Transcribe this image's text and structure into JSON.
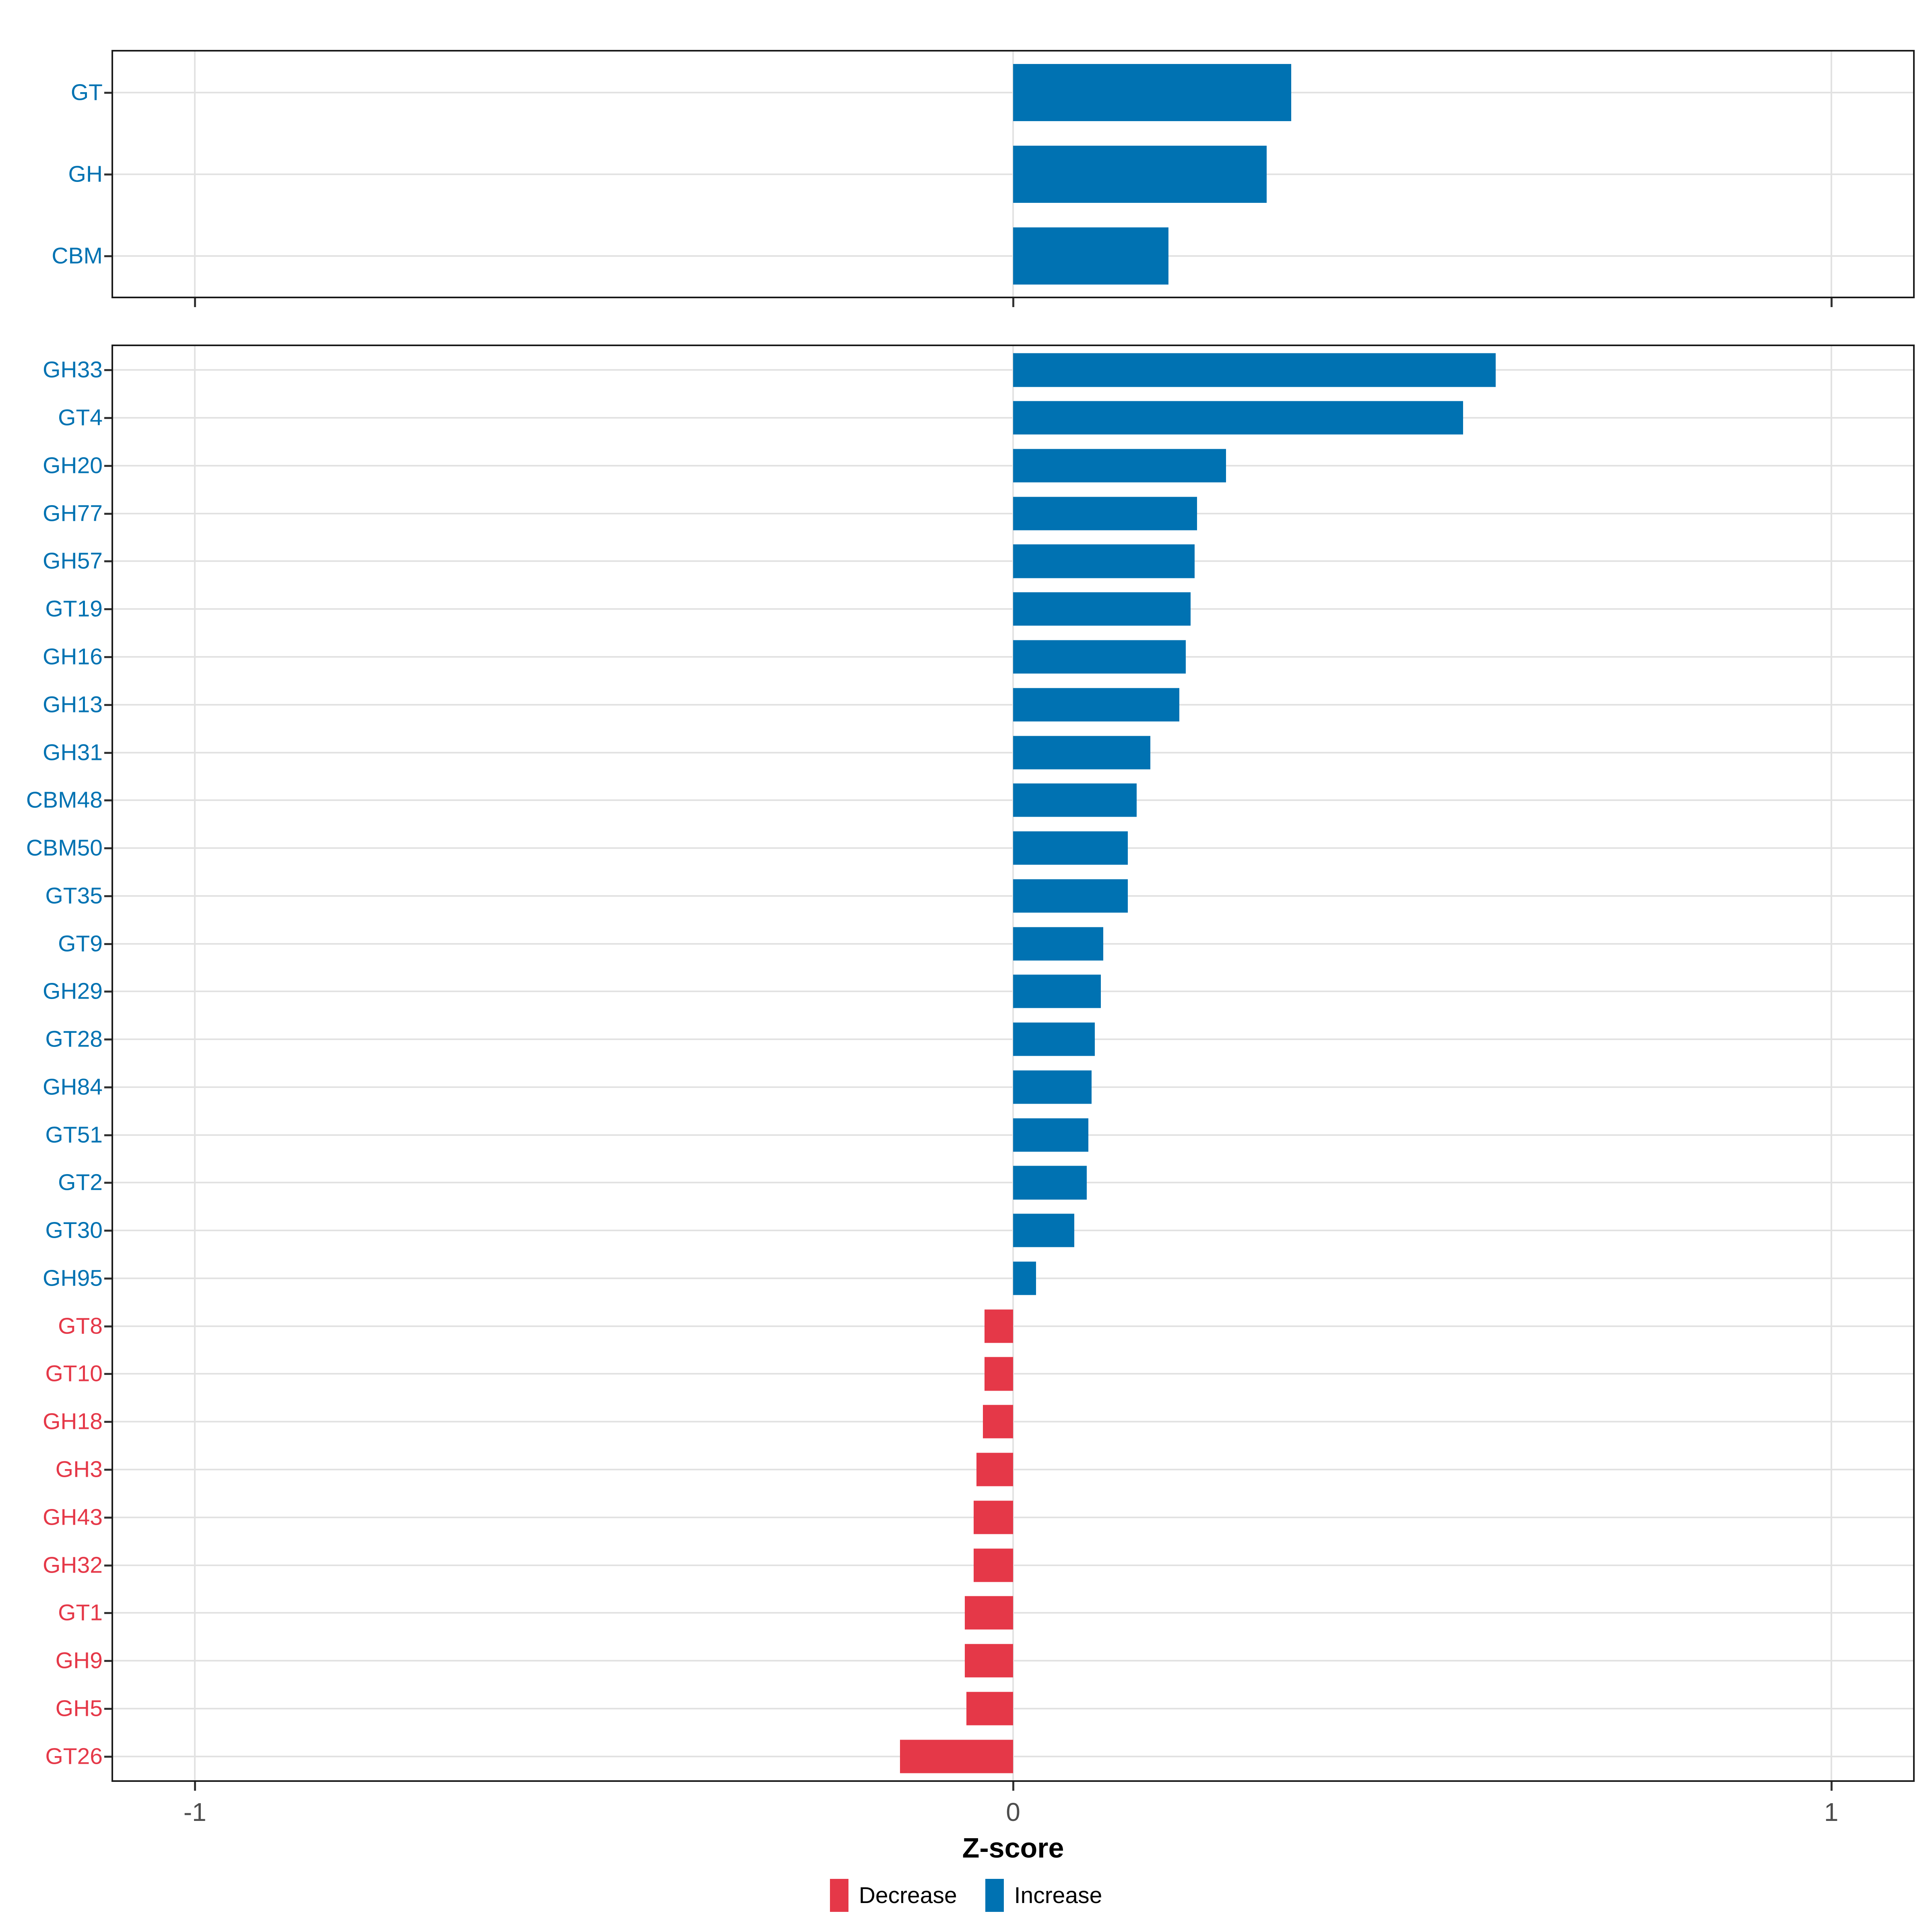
{
  "figure": {
    "background": "#ffffff"
  },
  "axis": {
    "xlabel": "Z-score",
    "tick_labels": [
      "-1",
      "0",
      "1"
    ],
    "tick_values": [
      -1,
      0,
      1
    ],
    "xlim": [
      -1.1,
      1.1
    ]
  },
  "legend": {
    "items": [
      {
        "label": "Decrease",
        "color": "#e53848"
      },
      {
        "label": "Increase",
        "color": "#0072b2"
      }
    ]
  },
  "colors": {
    "increase": "#0072b2",
    "decrease": "#e53848",
    "grid": "#e2e2e2",
    "panel_border": "#1a1a1a",
    "tick": "#333333",
    "axis_text": "#4d4d4d"
  },
  "chart_data": [
    {
      "type": "bar",
      "orientation": "horizontal",
      "panel": "cazyme-class-summary",
      "title": "",
      "categories": [
        "GT",
        "GH",
        "CBM"
      ],
      "values": [
        0.34,
        0.31,
        0.19
      ],
      "xlabel": "Z-score",
      "xlim": [
        -1.1,
        1.1
      ],
      "xticks": [
        -1,
        0,
        1
      ],
      "grid": true,
      "bar_color_by_sign": {
        "positive": "#0072b2",
        "negative": "#e53848"
      }
    },
    {
      "type": "bar",
      "orientation": "horizontal",
      "panel": "cazyme-family-detail",
      "title": "",
      "categories": [
        "GH33",
        "GT4",
        "GH20",
        "GH77",
        "GH57",
        "GT19",
        "GH16",
        "GH13",
        "GH31",
        "CBM48",
        "CBM50",
        "GT35",
        "GT9",
        "GH29",
        "GT28",
        "GH84",
        "GT51",
        "GT2",
        "GT30",
        "GH95",
        "GT8",
        "GT10",
        "GH18",
        "GH3",
        "GH43",
        "GH32",
        "GT1",
        "GH9",
        "GH5",
        "GT26"
      ],
      "values": [
        0.59,
        0.55,
        0.26,
        0.225,
        0.222,
        0.217,
        0.211,
        0.203,
        0.168,
        0.151,
        0.14,
        0.14,
        0.11,
        0.107,
        0.1,
        0.096,
        0.092,
        0.09,
        0.075,
        0.028,
        -0.035,
        -0.035,
        -0.037,
        -0.045,
        -0.048,
        -0.048,
        -0.059,
        -0.059,
        -0.057,
        -0.138
      ],
      "xlabel": "Z-score",
      "xlim": [
        -1.1,
        1.1
      ],
      "xticks": [
        -1,
        0,
        1
      ],
      "grid": true,
      "legend_position": "bottom",
      "bar_color_by_sign": {
        "positive": "#0072b2",
        "negative": "#e53848"
      }
    }
  ]
}
